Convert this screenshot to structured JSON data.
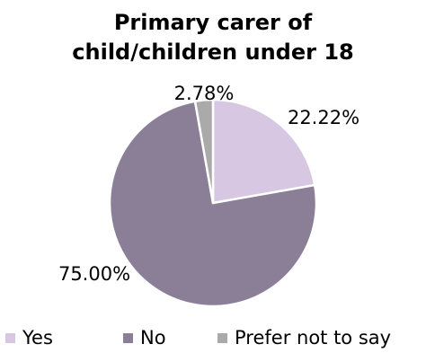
{
  "chart_data": {
    "type": "pie",
    "title_lines": [
      "Primary carer of",
      "child/children under 18"
    ],
    "slices": [
      {
        "label": "Yes",
        "value": 22.22,
        "value_label": "22.22%",
        "color": "#d7c7e3"
      },
      {
        "label": "No",
        "value": 75.0,
        "value_label": "75.00%",
        "color": "#8b7f97"
      },
      {
        "label": "Prefer not to say",
        "value": 2.78,
        "value_label": "2.78%",
        "color": "#aaaaaa"
      }
    ],
    "start_angle_deg": 0,
    "direction": "clockwise",
    "legend_position": "bottom"
  }
}
